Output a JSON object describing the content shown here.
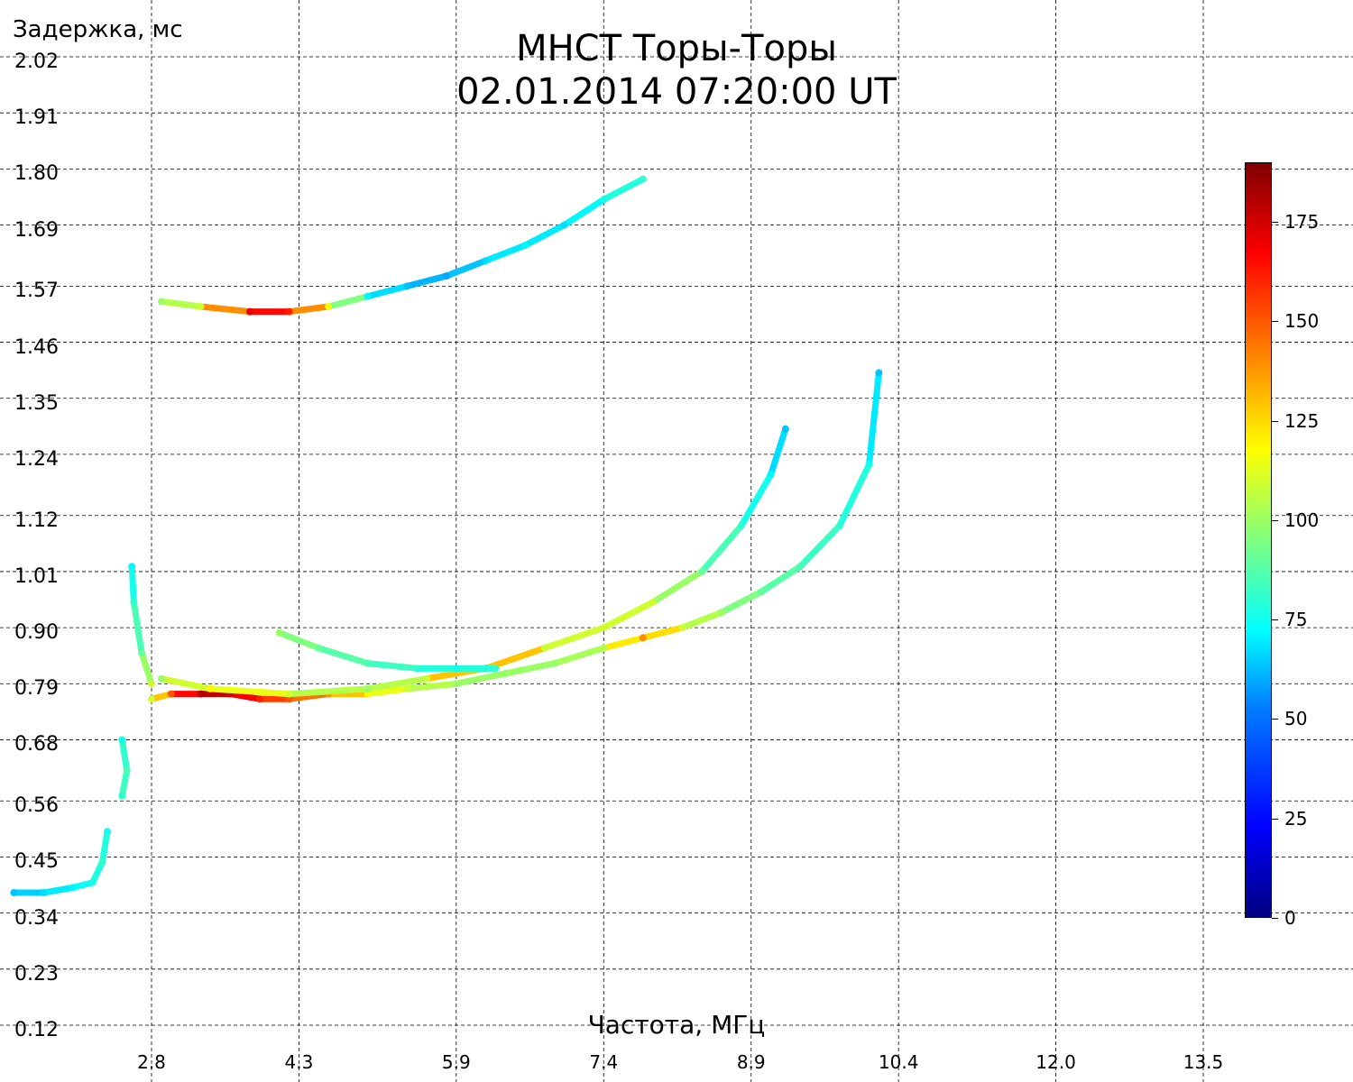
{
  "title_line1": "МНСТ Торы-Торы",
  "title_line2": "02.01.2014 07:20:00 UT",
  "ylabel": "Задержка, мс",
  "xlabel": "Частота, МГц",
  "yticks": [
    "2.02",
    "1.91",
    "1.80",
    "1.69",
    "1.57",
    "1.46",
    "1.35",
    "1.24",
    "1.12",
    "1.01",
    "0.90",
    "0.79",
    "0.68",
    "0.56",
    "0.45",
    "0.34",
    "0.23",
    "0.12"
  ],
  "xticks": [
    "2.8",
    "4.3",
    "5.9",
    "7.4",
    "8.9",
    "10.4",
    "12.0",
    "13.5"
  ],
  "colorbar_ticks": [
    "0",
    "25",
    "50",
    "75",
    "100",
    "125",
    "150",
    "175"
  ],
  "colormap": "jet",
  "chart_data": {
    "type": "scatter",
    "title": "МНСТ Торы-Торы\n02.01.2014 07:20:00 UT",
    "xlabel": "Частота, МГц",
    "ylabel": "Задержка, мс",
    "xlim": [
      1.3,
      15.0
    ],
    "ylim": [
      0.08,
      2.07
    ],
    "grid": true,
    "colorbar": {
      "range": [
        0,
        190
      ],
      "ticks": [
        0,
        25,
        50,
        75,
        100,
        125,
        150,
        175
      ]
    },
    "series": [
      {
        "points": [
          [
            1.4,
            0.38,
            60
          ],
          [
            1.7,
            0.38,
            65
          ],
          [
            2.0,
            0.39,
            70
          ],
          [
            2.2,
            0.4,
            75
          ],
          [
            2.3,
            0.44,
            80
          ],
          [
            2.35,
            0.5,
            75
          ]
        ]
      },
      {
        "points": [
          [
            2.5,
            0.57,
            80
          ],
          [
            2.55,
            0.62,
            85
          ],
          [
            2.5,
            0.68,
            75
          ]
        ]
      },
      {
        "points": [
          [
            2.6,
            1.02,
            70
          ],
          [
            2.62,
            0.95,
            80
          ],
          [
            2.7,
            0.85,
            90
          ],
          [
            2.8,
            0.79,
            110
          ]
        ]
      },
      {
        "points": [
          [
            2.8,
            0.76,
            110
          ],
          [
            3.0,
            0.77,
            150
          ],
          [
            3.3,
            0.77,
            180
          ],
          [
            3.6,
            0.77,
            175
          ],
          [
            3.9,
            0.76,
            160
          ],
          [
            4.2,
            0.76,
            150
          ],
          [
            4.6,
            0.77,
            140
          ],
          [
            5.0,
            0.77,
            120
          ],
          [
            5.4,
            0.78,
            110
          ],
          [
            5.9,
            0.79,
            100
          ],
          [
            6.4,
            0.81,
            100
          ],
          [
            6.9,
            0.83,
            100
          ],
          [
            7.4,
            0.86,
            105
          ],
          [
            7.8,
            0.88,
            140
          ],
          [
            8.2,
            0.9,
            110
          ],
          [
            8.6,
            0.93,
            100
          ],
          [
            9.0,
            0.97,
            90
          ],
          [
            9.4,
            1.02,
            85
          ],
          [
            9.8,
            1.1,
            80
          ],
          [
            10.1,
            1.22,
            75
          ],
          [
            10.2,
            1.4,
            60
          ]
        ]
      },
      {
        "points": [
          [
            2.9,
            0.8,
            100
          ],
          [
            3.4,
            0.78,
            120
          ],
          [
            4.2,
            0.77,
            110
          ],
          [
            5.0,
            0.78,
            100
          ],
          [
            5.6,
            0.8,
            110
          ],
          [
            6.2,
            0.82,
            150
          ],
          [
            6.8,
            0.86,
            110
          ],
          [
            7.4,
            0.9,
            110
          ],
          [
            7.9,
            0.95,
            110
          ],
          [
            8.4,
            1.01,
            90
          ],
          [
            8.8,
            1.1,
            80
          ],
          [
            9.1,
            1.2,
            70
          ],
          [
            9.25,
            1.29,
            60
          ]
        ]
      },
      {
        "points": [
          [
            4.1,
            0.89,
            100
          ],
          [
            4.5,
            0.86,
            90
          ],
          [
            5.0,
            0.83,
            85
          ],
          [
            5.5,
            0.82,
            80
          ],
          [
            5.9,
            0.82,
            75
          ],
          [
            6.3,
            0.82,
            80
          ]
        ]
      },
      {
        "points": [
          [
            2.9,
            1.54,
            100
          ],
          [
            3.3,
            1.53,
            110
          ],
          [
            3.8,
            1.52,
            170
          ],
          [
            4.2,
            1.52,
            160
          ],
          [
            4.6,
            1.53,
            120
          ],
          [
            5.0,
            1.55,
            70
          ],
          [
            5.4,
            1.57,
            60
          ],
          [
            5.8,
            1.59,
            55
          ],
          [
            6.2,
            1.62,
            65
          ],
          [
            6.6,
            1.65,
            70
          ],
          [
            7.0,
            1.69,
            65
          ],
          [
            7.4,
            1.74,
            75
          ],
          [
            7.8,
            1.78,
            80
          ]
        ]
      }
    ]
  }
}
